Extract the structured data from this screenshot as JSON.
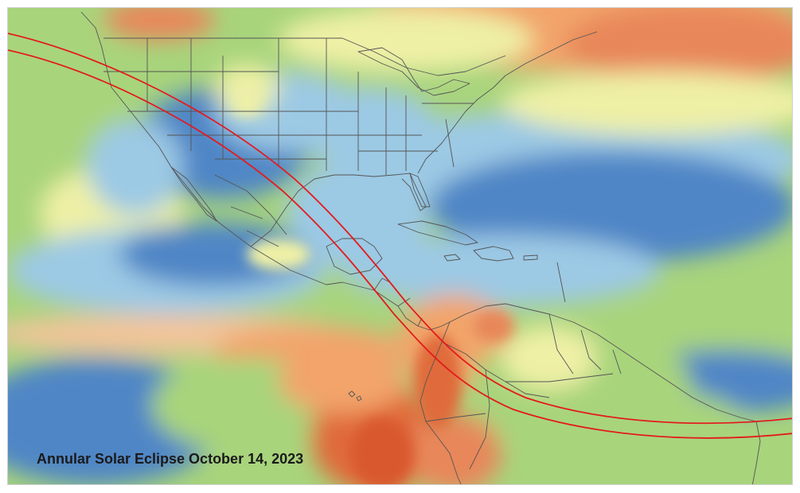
{
  "map": {
    "title": "Annular Solar Eclipse October 14, 2023",
    "legend": "none",
    "colors": {
      "ocean_blue": "#4f86c6",
      "light_blue": "#9cc9e4",
      "green": "#a8d47c",
      "yellow": "#eef0a6",
      "orange": "#f2a46a",
      "red": "#e06a3b",
      "path_line": "#e41a1c",
      "border_line": "#555555"
    },
    "eclipse_path": {
      "description_visible": false,
      "line_count": 2
    }
  }
}
